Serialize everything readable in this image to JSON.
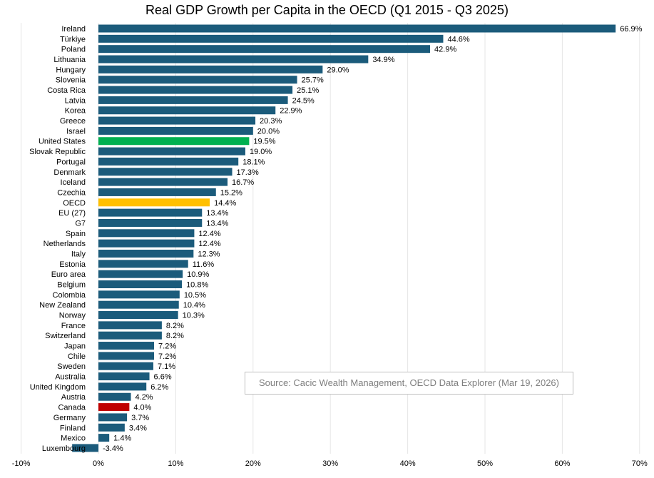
{
  "chart_data": {
    "type": "bar",
    "orientation": "horizontal",
    "title": "Real GDP Growth per Capita in the OECD (Q1 2015 - Q3 2025)",
    "xlabel": "",
    "ylabel": "",
    "xlim": [
      -10,
      70
    ],
    "xticks": [
      "-10%",
      "0%",
      "10%",
      "20%",
      "30%",
      "40%",
      "50%",
      "60%",
      "70%"
    ],
    "xtick_values": [
      -10,
      0,
      10,
      20,
      30,
      40,
      50,
      60,
      70
    ],
    "grid": "vertical",
    "categories": [
      "Ireland",
      "Türkiye",
      "Poland",
      "Lithuania",
      "Hungary",
      "Slovenia",
      "Costa Rica",
      "Latvia",
      "Korea",
      "Greece",
      "Israel",
      "United States",
      "Slovak Republic",
      "Portugal",
      "Denmark",
      "Iceland",
      "Czechia",
      "OECD",
      "EU (27)",
      "G7",
      "Spain",
      "Netherlands",
      "Italy",
      "Estonia",
      "Euro area",
      "Belgium",
      "Colombia",
      "New Zealand",
      "Norway",
      "France",
      "Switzerland",
      "Japan",
      "Chile",
      "Sweden",
      "Australia",
      "United Kingdom",
      "Austria",
      "Canada",
      "Germany",
      "Finland",
      "Mexico",
      "Luxembourg"
    ],
    "values": [
      66.9,
      44.6,
      42.9,
      34.9,
      29.0,
      25.7,
      25.1,
      24.5,
      22.9,
      20.3,
      20.0,
      19.5,
      19.0,
      18.1,
      17.3,
      16.7,
      15.2,
      14.4,
      13.4,
      13.4,
      12.4,
      12.4,
      12.3,
      11.6,
      10.9,
      10.8,
      10.5,
      10.4,
      10.3,
      8.2,
      8.2,
      7.2,
      7.2,
      7.1,
      6.6,
      6.2,
      4.2,
      4.0,
      3.7,
      3.4,
      1.4,
      -3.4
    ],
    "labels": [
      "66.9%",
      "44.6%",
      "42.9%",
      "34.9%",
      "29.0%",
      "25.7%",
      "25.1%",
      "24.5%",
      "22.9%",
      "20.3%",
      "20.0%",
      "19.5%",
      "19.0%",
      "18.1%",
      "17.3%",
      "16.7%",
      "15.2%",
      "14.4%",
      "13.4%",
      "13.4%",
      "12.4%",
      "12.4%",
      "12.3%",
      "11.6%",
      "10.9%",
      "10.8%",
      "10.5%",
      "10.4%",
      "10.3%",
      "8.2%",
      "8.2%",
      "7.2%",
      "7.2%",
      "7.1%",
      "6.6%",
      "6.2%",
      "4.2%",
      "4.0%",
      "3.7%",
      "3.4%",
      "1.4%",
      "-3.4%"
    ],
    "colors": {
      "default": "#1b5b7b",
      "United States": "#00b050",
      "OECD": "#ffc000",
      "Canada": "#c00000"
    },
    "annotation": "Source: Cacic Wealth Management, OECD Data Explorer (Mar 19, 2026)"
  }
}
